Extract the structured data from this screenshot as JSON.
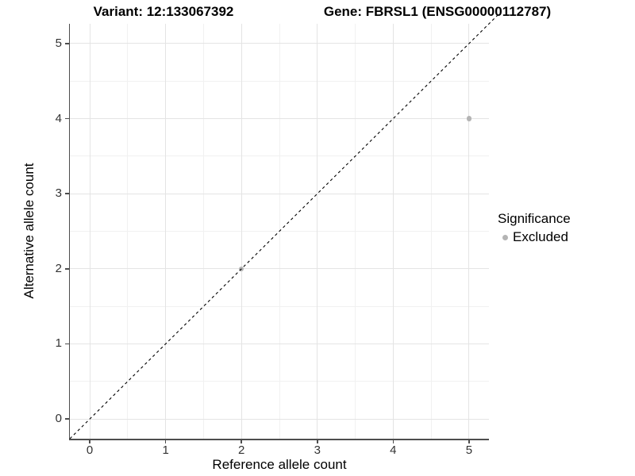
{
  "chart_data": {
    "type": "scatter",
    "title_left": "Variant: 12:133067392",
    "title_right": "Gene: FBRSL1 (ENSG00000112787)",
    "xlabel": "Reference allele count",
    "ylabel": "Alternative allele count",
    "xlim": [
      -0.2625,
      5.2625
    ],
    "ylim": [
      -0.2625,
      5.2625
    ],
    "x_ticks": [
      0,
      1,
      2,
      3,
      4,
      5
    ],
    "y_ticks": [
      0,
      1,
      2,
      3,
      4,
      5
    ],
    "x_minor_ticks": [
      0.5,
      1.5,
      2.5,
      3.5,
      4.5
    ],
    "y_minor_ticks": [
      0.5,
      1.5,
      2.5,
      3.5,
      4.5
    ],
    "grid": "major+minor",
    "reference_line": {
      "type": "identity",
      "slope": 1,
      "intercept": 0,
      "style": "dashed",
      "color": "#000000"
    },
    "series": [
      {
        "name": "Excluded",
        "color": "#b4b4b4",
        "points": [
          {
            "x": 2,
            "y": 2
          },
          {
            "x": 5,
            "y": 4
          }
        ]
      }
    ],
    "legend": {
      "title": "Significance",
      "position": "right",
      "entries": [
        {
          "label": "Excluded",
          "color": "#b4b4b4"
        }
      ]
    }
  },
  "colors": {
    "background": "#ffffff",
    "axis_line": "#4d4d4d",
    "grid_major": "#e4e4e4",
    "grid_minor": "#f1f1f1",
    "tick_label": "#333333",
    "point_excluded": "#b4b4b4"
  }
}
